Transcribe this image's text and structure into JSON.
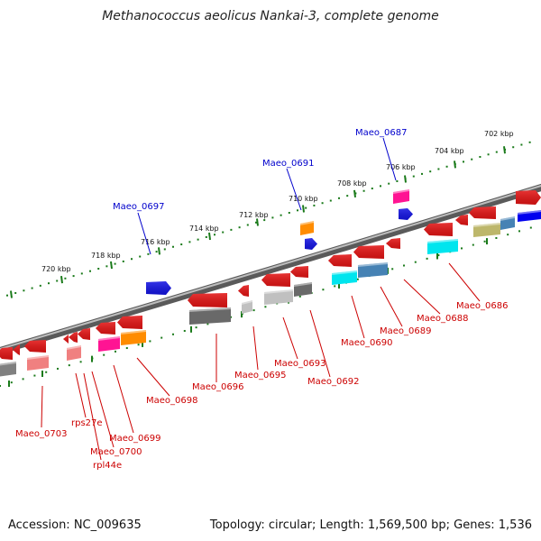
{
  "title": "Methanococcus aeolicus Nankai-3, complete genome",
  "footer": {
    "accession": "Accession: NC_009635",
    "summary": "Topology: circular; Length: 1,569,500 bp; Genes: 1,536"
  },
  "colors": {
    "backbone": "#8a8a8a",
    "scale_ticks": "#1a7a1a",
    "label_forward": "#0000cc",
    "label_reverse": "#cc0000",
    "leader_forward": "#0000cc",
    "leader_reverse": "#cc0000"
  },
  "scale_labels": [
    "702 kbp",
    "704 kbp",
    "706 kbp",
    "708 kbp",
    "710 kbp",
    "712 kbp",
    "714 kbp",
    "716 kbp",
    "718 kbp",
    "720 kbp"
  ],
  "forward_genes": [
    {
      "label": "Maeo_0687",
      "color": "#0000ee"
    },
    {
      "label": "Maeo_0691",
      "color": "#0000ee"
    },
    {
      "label": "Maeo_0697",
      "color": "#0000ee"
    }
  ],
  "reverse_genes": [
    {
      "label": "Maeo_0686"
    },
    {
      "label": "Maeo_0688"
    },
    {
      "label": "Maeo_0689"
    },
    {
      "label": "Maeo_0690"
    },
    {
      "label": "Maeo_0692"
    },
    {
      "label": "Maeo_0693"
    },
    {
      "label": "Maeo_0695"
    },
    {
      "label": "Maeo_0696"
    },
    {
      "label": "Maeo_0698"
    },
    {
      "label": "Maeo_0699"
    },
    {
      "label": "Maeo_0700"
    },
    {
      "label": "rpl44e"
    },
    {
      "label": "rps27e"
    },
    {
      "label": "Maeo_0703"
    }
  ],
  "cog_colors": [
    "#00e5ee",
    "#4682b4",
    "#bdb76b",
    "#0000ee",
    "#c0c0c0",
    "#696969",
    "#ff8c00",
    "#ff1493",
    "#f08080",
    "#808080"
  ]
}
